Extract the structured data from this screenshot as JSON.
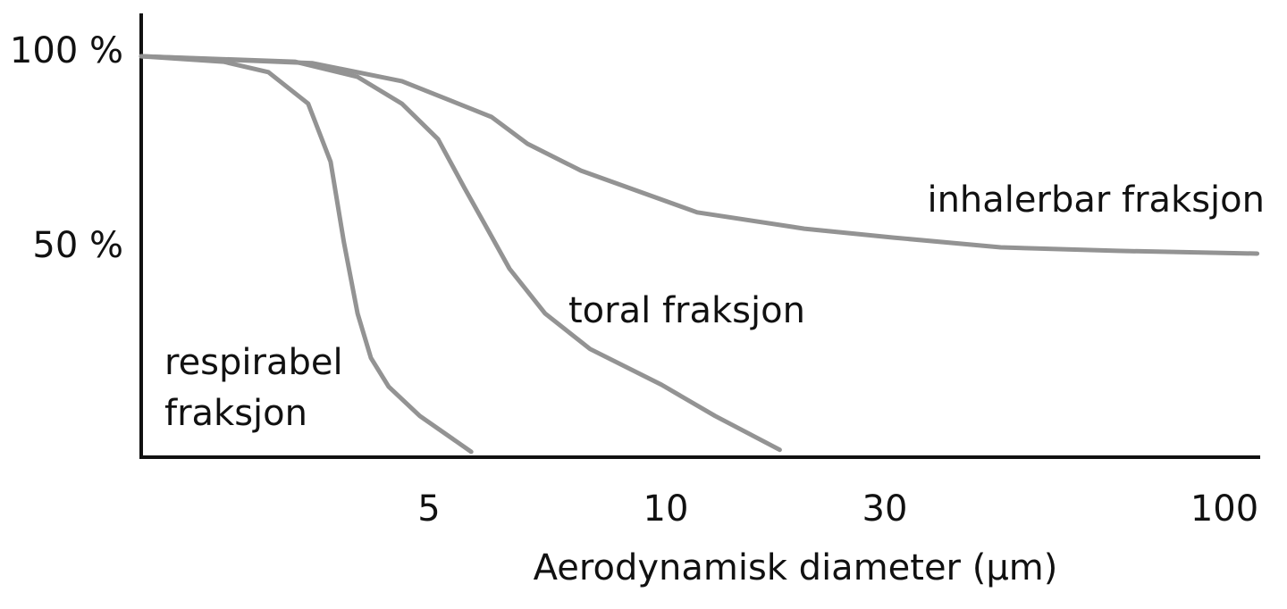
{
  "chart_data": {
    "type": "line",
    "x_label": "Aerodynamisk diameter (µm)",
    "xlim": [
      0,
      107
    ],
    "xticks": [
      5,
      10,
      30,
      100
    ],
    "ylim": [
      -3,
      111
    ],
    "yticks": [
      {
        "value": 100,
        "label": "100 %"
      },
      {
        "value": 50,
        "label": "50 %"
      }
    ],
    "series": [
      {
        "name": "respirabel fraksjon",
        "color": "#939393",
        "x": [
          0,
          1.43,
          2.21,
          2.9,
          3.29,
          3.52,
          3.76,
          3.99,
          4.3,
          4.84,
          5.89
        ],
        "values": [
          100,
          98.6,
          95.9,
          87.8,
          72.9,
          52.3,
          33.9,
          22.5,
          15.1,
          7.6,
          -1.6
        ]
      },
      {
        "name": "toral fraksjon",
        "color": "#939393",
        "x": [
          0,
          2.67,
          3.76,
          4.53,
          5.19,
          5.75,
          6.23,
          6.7,
          7.45,
          8.4,
          9.91,
          14.5,
          20.4
        ],
        "values": [
          100,
          98.6,
          94.7,
          87.8,
          78.7,
          66.1,
          55.7,
          45.4,
          33.9,
          24.8,
          15.6,
          7.6,
          -1.1
        ]
      },
      {
        "name": "inhalerbar fraksjon",
        "color": "#939393",
        "x": [
          0,
          2.98,
          4.53,
          6.32,
          7.08,
          8.21,
          12.86,
          22.65,
          31.84,
          53.9,
          77.9,
          106.4
        ],
        "values": [
          100,
          98.2,
          93.6,
          84.4,
          77.5,
          70.6,
          59.9,
          55.7,
          53.4,
          50.9,
          50,
          49.3
        ]
      }
    ]
  }
}
